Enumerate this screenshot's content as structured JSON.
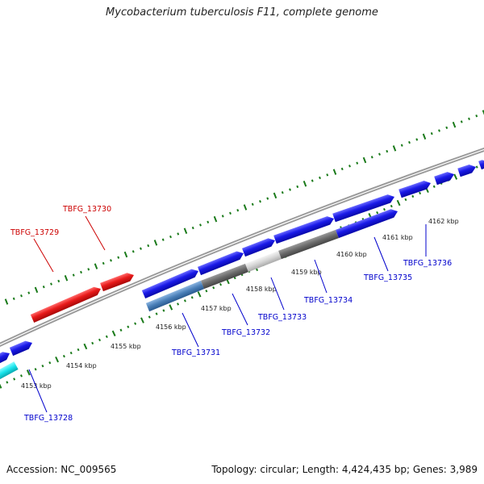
{
  "title": "Mycobacterium tuberculosis F11, complete genome",
  "footer": {
    "accession": "Accession: NC_009565",
    "topology": "Topology: circular; Length: 4,424,435 bp; Genes: 3,989"
  },
  "scale_labels": [
    {
      "text": "4153 kbp"
    },
    {
      "text": "4154 kbp"
    },
    {
      "text": "4155 kbp"
    },
    {
      "text": "4156 kbp"
    },
    {
      "text": "4157 kbp"
    },
    {
      "text": "4158 kbp"
    },
    {
      "text": "4159 kbp"
    },
    {
      "text": "4160 kbp"
    },
    {
      "text": "4161 kbp"
    },
    {
      "text": "4162 kbp"
    }
  ],
  "gene_labels": [
    {
      "text": "TBFG_13728",
      "color": "#0000cc"
    },
    {
      "text": "TBFG_13729",
      "color": "#cc0000"
    },
    {
      "text": "TBFG_13730",
      "color": "#cc0000"
    },
    {
      "text": "TBFG_13731",
      "color": "#0000cc"
    },
    {
      "text": "TBFG_13732",
      "color": "#0000cc"
    },
    {
      "text": "TBFG_13733",
      "color": "#0000cc"
    },
    {
      "text": "TBFG_13734",
      "color": "#0000cc"
    },
    {
      "text": "TBFG_13735",
      "color": "#0000cc"
    },
    {
      "text": "TBFG_13736",
      "color": "#0000cc"
    }
  ],
  "colors": {
    "forward": "#1010e0",
    "reverse": "#e01010",
    "cyan": "#10e0e8",
    "steelblue": "#4a7fb8",
    "darkgray": "#6a6a6a",
    "lightgray": "#d0d0d0",
    "tick": "#1a7a1a",
    "backbone": "#777777"
  }
}
